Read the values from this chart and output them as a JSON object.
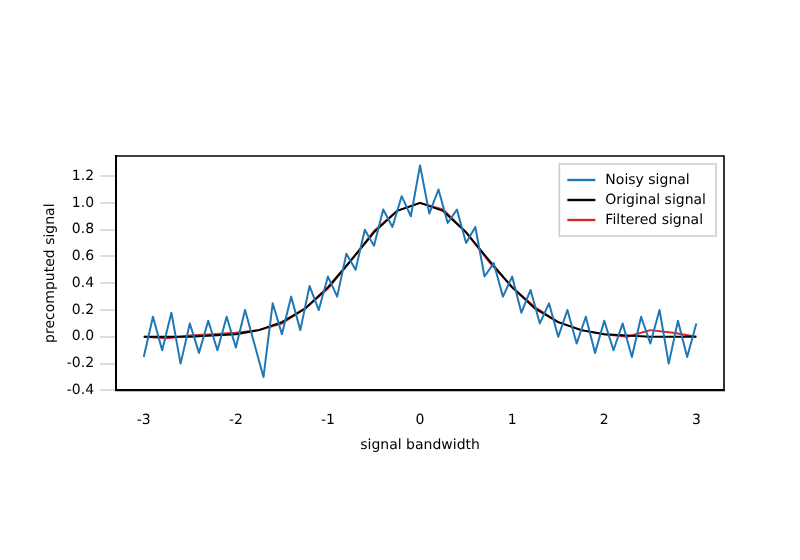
{
  "chart_data": {
    "type": "line",
    "xlabel": "signal bandwidth",
    "ylabel": "precomputed signal",
    "xlim": [
      -3.3,
      3.3
    ],
    "ylim": [
      -0.4,
      1.35
    ],
    "xticks": [
      -3,
      -2,
      -1,
      0,
      1,
      2,
      3
    ],
    "yticks": [
      -0.4,
      -0.2,
      {
        "value": 0,
        "label": "0.0"
      },
      0.2,
      0.4,
      0.6,
      0.8,
      {
        "value": 1,
        "label": "1.0"
      },
      1.2
    ],
    "grid": false,
    "legend": "top right",
    "marker": "none",
    "line_style": "solid",
    "series": [
      {
        "name": "Noisy signal",
        "color": "#1f77b4",
        "x": [
          -3.0,
          -2.9,
          -2.8,
          -2.7,
          -2.6,
          -2.5,
          -2.4,
          -2.3,
          -2.2,
          -2.1,
          -2.0,
          -1.9,
          -1.8,
          -1.7,
          -1.6,
          -1.5,
          -1.4,
          -1.3,
          -1.2,
          -1.1,
          -1.0,
          -0.9,
          -0.8,
          -0.7,
          -0.6,
          -0.5,
          -0.4,
          -0.3,
          -0.2,
          -0.1,
          0.0,
          0.1,
          0.2,
          0.3,
          0.4,
          0.5,
          0.6,
          0.7,
          0.8,
          0.9,
          1.0,
          1.1,
          1.2,
          1.3,
          1.4,
          1.5,
          1.6,
          1.7,
          1.8,
          1.9,
          2.0,
          2.1,
          2.2,
          2.3,
          2.4,
          2.5,
          2.6,
          2.7,
          2.8,
          2.9,
          3.0
        ],
        "values": [
          -0.15,
          0.15,
          -0.1,
          0.18,
          -0.2,
          0.1,
          -0.12,
          0.12,
          -0.1,
          0.15,
          -0.08,
          0.2,
          -0.05,
          -0.3,
          0.25,
          0.02,
          0.3,
          0.05,
          0.38,
          0.2,
          0.45,
          0.3,
          0.62,
          0.5,
          0.8,
          0.68,
          0.95,
          0.82,
          1.05,
          0.9,
          1.28,
          0.92,
          1.1,
          0.85,
          0.95,
          0.7,
          0.82,
          0.45,
          0.55,
          0.3,
          0.45,
          0.18,
          0.35,
          0.1,
          0.25,
          0.0,
          0.2,
          -0.05,
          0.15,
          -0.12,
          0.12,
          -0.1,
          0.1,
          -0.15,
          0.15,
          -0.05,
          0.2,
          -0.2,
          0.12,
          -0.15,
          0.1
        ]
      },
      {
        "name": "Original signal",
        "color": "#000000",
        "x": [
          -3,
          -2.75,
          -2.5,
          -2.25,
          -2,
          -1.75,
          -1.5,
          -1.25,
          -1,
          -0.75,
          -0.5,
          -0.25,
          0,
          0.25,
          0.5,
          0.75,
          1,
          1.25,
          1.5,
          1.75,
          2,
          2.25,
          2.5,
          2.75,
          3
        ],
        "values": [
          0.0,
          0.0,
          0.0,
          0.01,
          0.02,
          0.05,
          0.11,
          0.21,
          0.37,
          0.57,
          0.78,
          0.94,
          1.0,
          0.94,
          0.78,
          0.57,
          0.37,
          0.21,
          0.11,
          0.05,
          0.02,
          0.01,
          0.0,
          0.0,
          0.0
        ]
      },
      {
        "name": "Filtered signal",
        "color": "#d62728",
        "x": [
          -3,
          -2.75,
          -2.5,
          -2.25,
          -2,
          -1.75,
          -1.5,
          -1.25,
          -1,
          -0.75,
          -0.5,
          -0.25,
          0,
          0.25,
          0.5,
          0.75,
          1,
          1.25,
          1.5,
          1.75,
          2,
          2.25,
          2.5,
          2.75,
          3
        ],
        "values": [
          0.0,
          -0.01,
          0.01,
          0.02,
          0.03,
          0.05,
          0.1,
          0.21,
          0.36,
          0.57,
          0.79,
          0.94,
          1.0,
          0.95,
          0.78,
          0.56,
          0.37,
          0.22,
          0.11,
          0.05,
          0.02,
          0.0,
          0.05,
          0.03,
          0.0
        ]
      }
    ]
  }
}
